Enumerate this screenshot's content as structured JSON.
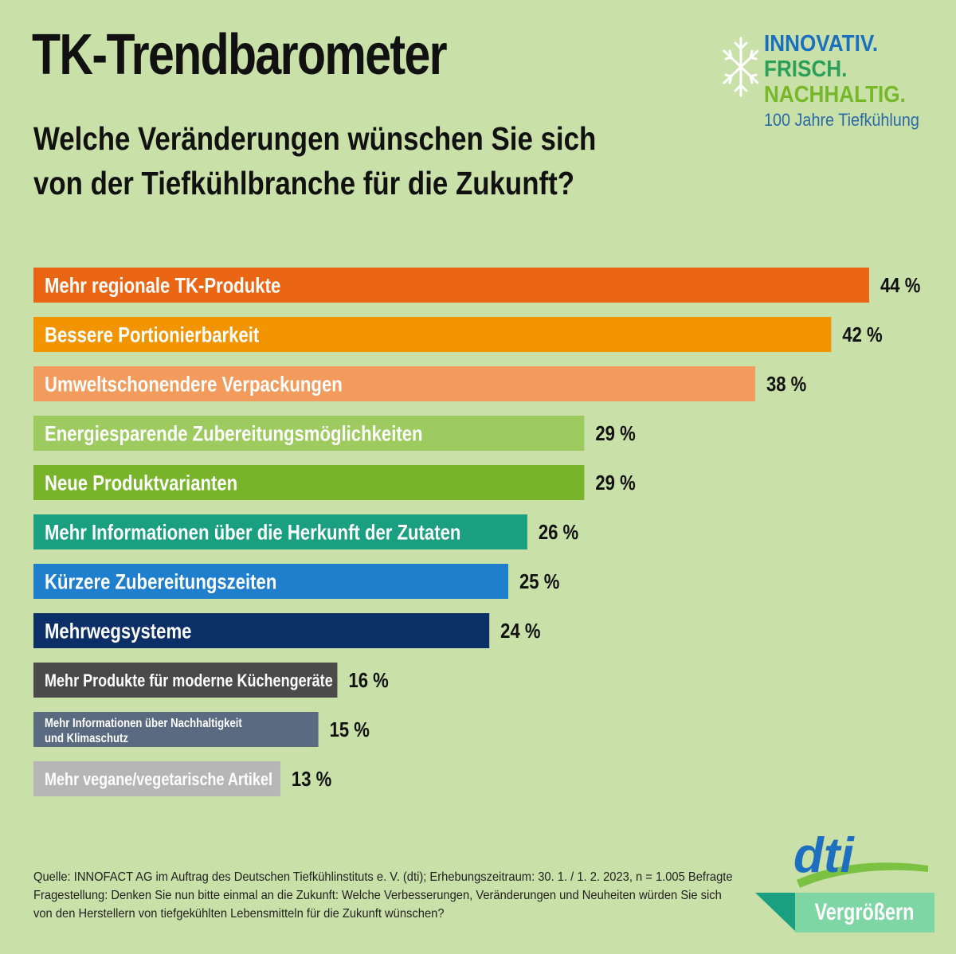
{
  "title": "TK-Trendbarometer",
  "question": {
    "line1": "Welche Veränderungen wünschen Sie sich",
    "line2": "von der Tiefkühlbranche für die Zukunft?"
  },
  "brand": {
    "line1": "INNOVATIV.",
    "line2": "FRISCH.",
    "line3": "NACHHALTIG.",
    "line4": "100 Jahre Tiefkühlung",
    "icon": "snowflake-icon"
  },
  "chart_data": {
    "type": "bar",
    "orientation": "horizontal",
    "unit": "%",
    "xlim": [
      0,
      44
    ],
    "categories": [
      "Mehr regionale TK-Produkte",
      "Bessere Portionierbarkeit",
      "Umweltschonendere Verpackungen",
      "Energiesparende Zubereitungsmöglichkeiten",
      "Neue Produktvarianten",
      "Mehr Informationen über die Herkunft der Zutaten",
      "Kürzere Zubereitungszeiten",
      "Mehrwegsysteme",
      "Mehr Produkte für moderne Küchengeräte",
      "Mehr Informationen über Nachhaltigkeit und Klimaschutz",
      "Mehr vegane/vegetarische Artikel"
    ],
    "values": [
      44,
      42,
      38,
      29,
      29,
      26,
      25,
      24,
      16,
      15,
      13
    ],
    "value_labels": [
      "44 %",
      "42 %",
      "38 %",
      "29 %",
      "29 %",
      "26 %",
      "25 %",
      "24 %",
      "16 %",
      "15 %",
      "13 %"
    ],
    "colors": [
      "#ea6614",
      "#f29400",
      "#f29b5c",
      "#9dcb60",
      "#78b42a",
      "#1aa081",
      "#1f7fcc",
      "#0b2f66",
      "#4a4a4a",
      "#5a6a80",
      "#b6b6b6"
    ]
  },
  "footer": {
    "line1": "Quelle: INNOFACT AG im Auftrag des Deutschen Tiefkühlinstituts e. V. (dti); Erhebungszeitraum: 30. 1. / 1. 2. 2023, n = 1.005 Befragte",
    "line2": "Fragestellung: Denken Sie nun bitte einmal an die Zukunft: Welche Verbesserungen, Veränderungen und Neuheiten würden Sie sich",
    "line3": "von den Herstellern von tiefgekühlten Lebensmitteln für die Zukunft wünschen?"
  },
  "logo": {
    "text": "dti"
  },
  "zoom_button": {
    "label": "Vergrößern"
  }
}
